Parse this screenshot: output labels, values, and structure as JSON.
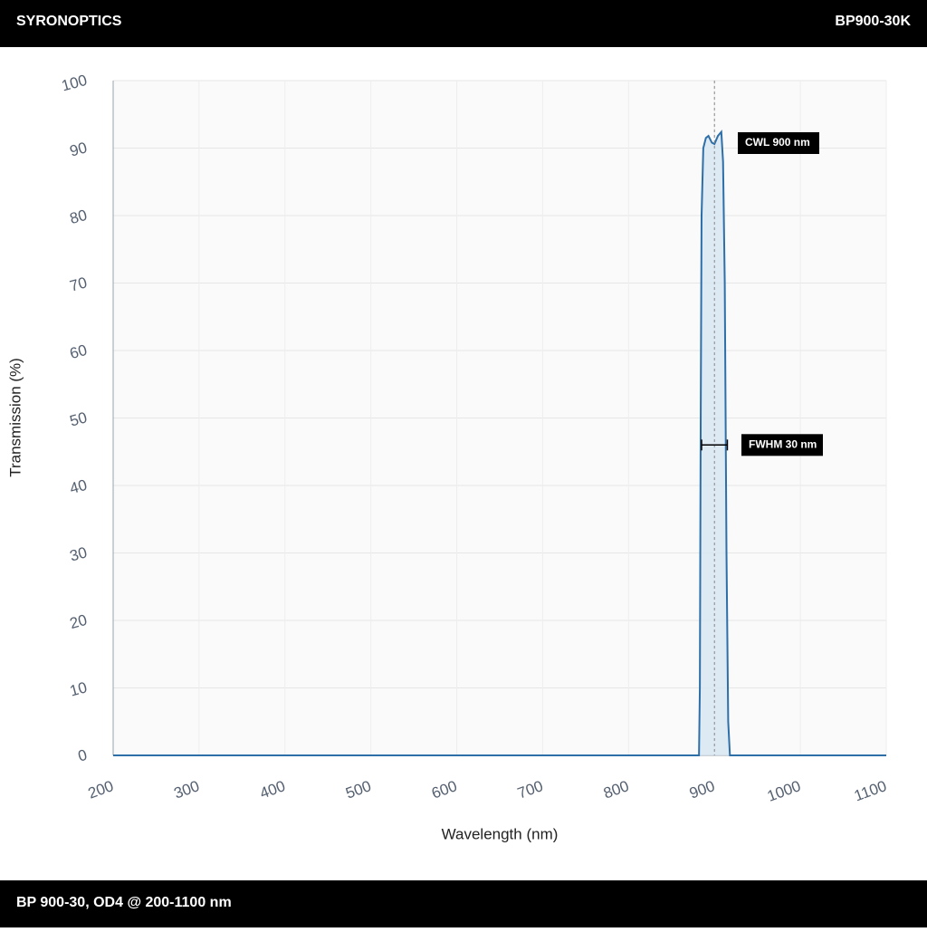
{
  "header": {
    "brand": "SYRONOPTICS",
    "part": "BP900-30K"
  },
  "footer": {
    "caption": "BP 900-30, OD4 @ 200-1100 nm"
  },
  "chart_data": {
    "type": "line",
    "x_label": "Wavelength (nm)",
    "y_label": "Transmission (%)",
    "x": [
      200,
      880,
      882,
      883,
      884,
      885,
      887,
      890,
      893,
      897,
      900,
      904,
      908,
      910,
      912,
      914,
      916,
      918,
      1100
    ],
    "series": [
      {
        "name": "Transmission",
        "color": "#2e6fa8",
        "fill": "#d6e5f1",
        "values": [
          0,
          0,
          0,
          10,
          50,
          80,
          90,
          91.5,
          91.8,
          90.8,
          90.6,
          91.8,
          92.4,
          88,
          70,
          30,
          5,
          0,
          0
        ]
      }
    ],
    "xlim": [
      200,
      1100
    ],
    "xticks": [
      200,
      300,
      400,
      500,
      600,
      700,
      800,
      900,
      1000,
      1100
    ],
    "ylim": [
      0,
      100
    ],
    "yticks": [
      0,
      10,
      20,
      30,
      40,
      50,
      60,
      70,
      80,
      90,
      100
    ],
    "grid": true,
    "annotations": [
      {
        "text": "CWL 900 nm",
        "x": 900
      },
      {
        "text": "FWHM 30 nm",
        "x": [
          885,
          915
        ],
        "y": 46
      }
    ]
  }
}
